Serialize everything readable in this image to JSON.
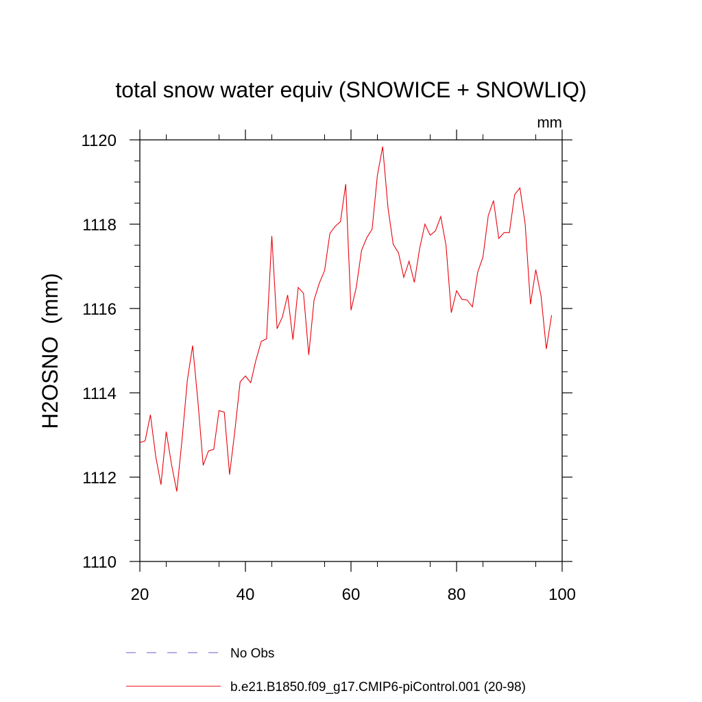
{
  "chart_data": {
    "type": "line",
    "title": "total snow water equiv (SNOWICE + SNOWLIQ)",
    "units_label": "mm",
    "ylabel": "H2OSNO  (mm)",
    "xlabel": "",
    "xlim": [
      20,
      100
    ],
    "ylim": [
      1110,
      1120
    ],
    "x_ticks": [
      20,
      40,
      60,
      80,
      100
    ],
    "y_ticks": [
      1110,
      1112,
      1114,
      1116,
      1118,
      1120
    ],
    "grid": false,
    "legend_position": "bottom",
    "series": [
      {
        "name": "No Obs",
        "color": "#6a5acd",
        "style": "dashed",
        "x": [],
        "values": []
      },
      {
        "name": "b.e21.B1850.f09_g17.CMIP6-piControl.001 (20-98)",
        "color": "#e8000b",
        "style": "solid",
        "x": [
          20,
          21,
          22,
          23,
          24,
          25,
          26,
          27,
          28,
          29,
          30,
          31,
          32,
          33,
          34,
          35,
          36,
          37,
          38,
          39,
          40,
          41,
          42,
          43,
          44,
          45,
          46,
          47,
          48,
          49,
          50,
          51,
          52,
          53,
          54,
          55,
          56,
          57,
          58,
          59,
          60,
          61,
          62,
          63,
          64,
          65,
          66,
          67,
          68,
          69,
          70,
          71,
          72,
          73,
          74,
          75,
          76,
          77,
          78,
          79,
          80,
          81,
          82,
          83,
          84,
          85,
          86,
          87,
          88,
          89,
          90,
          91,
          92,
          93,
          94,
          95,
          96,
          97,
          98
        ],
        "values": [
          1112.82,
          1112.86,
          1113.48,
          1112.5,
          1111.82,
          1113.08,
          1112.3,
          1111.66,
          1112.9,
          1114.3,
          1115.12,
          1113.8,
          1112.28,
          1112.62,
          1112.66,
          1113.58,
          1113.54,
          1112.06,
          1113.1,
          1114.26,
          1114.4,
          1114.24,
          1114.78,
          1115.22,
          1115.28,
          1117.72,
          1115.52,
          1115.8,
          1116.32,
          1115.26,
          1116.5,
          1116.36,
          1114.9,
          1116.2,
          1116.6,
          1116.9,
          1117.78,
          1117.95,
          1118.06,
          1118.95,
          1115.96,
          1116.5,
          1117.38,
          1117.68,
          1117.88,
          1119.16,
          1119.84,
          1118.4,
          1117.52,
          1117.32,
          1116.74,
          1117.12,
          1116.62,
          1117.42,
          1118.0,
          1117.74,
          1117.84,
          1118.18,
          1117.5,
          1115.9,
          1116.42,
          1116.22,
          1116.2,
          1116.04,
          1116.86,
          1117.22,
          1118.2,
          1118.56,
          1117.66,
          1117.8,
          1117.8,
          1118.7,
          1118.86,
          1118.0,
          1116.1,
          1116.92,
          1116.3,
          1115.04,
          1115.84
        ]
      }
    ]
  }
}
